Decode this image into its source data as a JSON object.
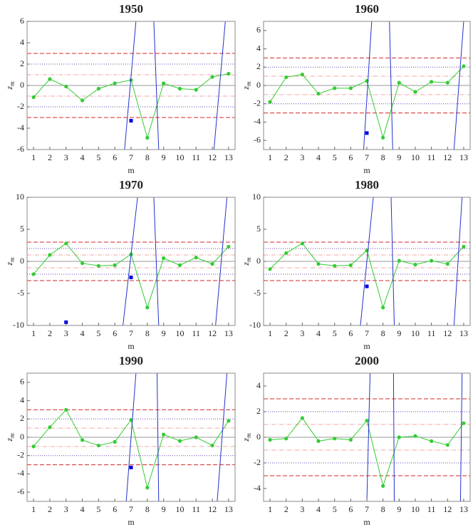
{
  "chart_data": [
    {
      "type": "line",
      "title": "1950",
      "x_label": "m",
      "y_label": "z",
      "y_label_subscript": "m",
      "xlim": [
        0.6,
        13.4
      ],
      "xticks": [
        1,
        2,
        3,
        4,
        5,
        6,
        7,
        8,
        9,
        10,
        11,
        12,
        13
      ],
      "ylim": [
        -6,
        6
      ],
      "yticks": [
        -6,
        -4,
        -2,
        0,
        2,
        4,
        6
      ],
      "reference_lines": [
        {
          "value": 3,
          "color": "#d62728",
          "dash": "6,3"
        },
        {
          "value": -3,
          "color": "#d62728",
          "dash": "6,3"
        },
        {
          "value": 2,
          "color": "#6a3fb0",
          "dash": "1,2"
        },
        {
          "value": -2,
          "color": "#6a3fb0",
          "dash": "1,2"
        },
        {
          "value": 1,
          "color": "#f4a6a6",
          "dash": "6,2,1,2"
        },
        {
          "value": -1,
          "color": "#f4a6a6",
          "dash": "6,2,1,2"
        },
        {
          "value": 0,
          "color": "#999999",
          "dash": "none"
        }
      ],
      "series": [
        {
          "color": "#33cc33",
          "marker": "circle",
          "x": [
            1,
            2,
            3,
            4,
            5,
            6,
            7,
            8,
            9,
            10,
            11,
            12,
            13
          ],
          "values": [
            -1.1,
            0.6,
            -0.1,
            -1.4,
            -0.3,
            0.2,
            0.5,
            -4.9,
            0.2,
            -0.3,
            -0.4,
            0.8,
            1.1
          ]
        },
        {
          "color": "#0000dd",
          "marker": "square",
          "x": [
            7
          ],
          "values": [
            -3.3
          ]
        },
        {
          "color": "#2233cc",
          "marker": "none",
          "x": [
            6.6,
            7.3,
            null,
            8.4,
            8.7,
            null,
            12.1,
            12.8
          ],
          "values": [
            -6,
            6,
            null,
            6,
            -6,
            null,
            -6,
            6
          ]
        }
      ]
    },
    {
      "type": "line",
      "title": "1960",
      "x_label": "m",
      "y_label": "z",
      "y_label_subscript": "m",
      "xlim": [
        0.6,
        13.4
      ],
      "xticks": [
        1,
        2,
        3,
        4,
        5,
        6,
        7,
        8,
        9,
        10,
        11,
        12,
        13
      ],
      "ylim": [
        -7,
        7
      ],
      "yticks": [
        -6,
        -4,
        -2,
        0,
        2,
        4,
        6
      ],
      "reference_lines": [
        {
          "value": 3,
          "color": "#d62728",
          "dash": "6,3"
        },
        {
          "value": -3,
          "color": "#d62728",
          "dash": "6,3"
        },
        {
          "value": 2,
          "color": "#6a3fb0",
          "dash": "1,2"
        },
        {
          "value": -2,
          "color": "#6a3fb0",
          "dash": "1,2"
        },
        {
          "value": 1,
          "color": "#f4a6a6",
          "dash": "6,2,1,2"
        },
        {
          "value": -1,
          "color": "#f4a6a6",
          "dash": "6,2,1,2"
        },
        {
          "value": 0,
          "color": "#999999",
          "dash": "none"
        }
      ],
      "series": [
        {
          "color": "#33cc33",
          "marker": "circle",
          "x": [
            1,
            2,
            3,
            4,
            5,
            6,
            7,
            8,
            9,
            10,
            11,
            12,
            13
          ],
          "values": [
            -1.8,
            0.9,
            1.2,
            -0.9,
            -0.3,
            -0.3,
            0.5,
            -5.7,
            0.3,
            -0.7,
            0.4,
            0.3,
            2.1
          ]
        },
        {
          "color": "#0000dd",
          "marker": "square",
          "x": [
            7
          ],
          "values": [
            -5.2
          ]
        },
        {
          "color": "#2233cc",
          "marker": "none",
          "x": [
            6.8,
            7.3,
            null,
            8.4,
            8.6,
            null,
            12.4,
            13.0
          ],
          "values": [
            -7,
            7,
            null,
            7,
            -7,
            null,
            -7,
            7
          ]
        }
      ]
    },
    {
      "type": "line",
      "title": "1970",
      "x_label": "m",
      "y_label": "z",
      "y_label_subscript": "m",
      "xlim": [
        0.6,
        13.4
      ],
      "xticks": [
        1,
        2,
        3,
        4,
        5,
        6,
        7,
        8,
        9,
        10,
        11,
        12,
        13
      ],
      "ylim": [
        -10,
        10
      ],
      "yticks": [
        -10,
        -5,
        0,
        5,
        10
      ],
      "reference_lines": [
        {
          "value": 3,
          "color": "#d62728",
          "dash": "6,3"
        },
        {
          "value": -3,
          "color": "#d62728",
          "dash": "6,3"
        },
        {
          "value": 2,
          "color": "#6a3fb0",
          "dash": "1,2"
        },
        {
          "value": -2,
          "color": "#6a3fb0",
          "dash": "1,2"
        },
        {
          "value": 1,
          "color": "#f4a6a6",
          "dash": "6,2,1,2"
        },
        {
          "value": -1,
          "color": "#f4a6a6",
          "dash": "6,2,1,2"
        },
        {
          "value": 0,
          "color": "#999999",
          "dash": "none"
        }
      ],
      "series": [
        {
          "color": "#33cc33",
          "marker": "circle",
          "x": [
            1,
            2,
            3,
            4,
            5,
            6,
            7,
            8,
            9,
            10,
            11,
            12,
            13
          ],
          "values": [
            -2,
            1,
            2.8,
            -0.3,
            -0.7,
            -0.6,
            1.1,
            -7.2,
            0.5,
            -0.6,
            0.6,
            -0.4,
            2.3
          ]
        },
        {
          "color": "#0000dd",
          "marker": "square",
          "x": [
            7,
            3
          ],
          "values": [
            -2.5,
            -9.5
          ]
        },
        {
          "color": "#2233cc",
          "marker": "none",
          "x": [
            6.5,
            7.4,
            null,
            8.4,
            8.7,
            null,
            12.2,
            12.9
          ],
          "values": [
            -10,
            10,
            null,
            10,
            -10,
            null,
            -10,
            10
          ]
        }
      ]
    },
    {
      "type": "line",
      "title": "1980",
      "x_label": "m",
      "y_label": "z",
      "y_label_subscript": "m",
      "xlim": [
        0.6,
        13.4
      ],
      "xticks": [
        1,
        2,
        3,
        4,
        5,
        6,
        7,
        8,
        9,
        10,
        11,
        12,
        13
      ],
      "ylim": [
        -10,
        10
      ],
      "yticks": [
        -10,
        -5,
        0,
        5,
        10
      ],
      "reference_lines": [
        {
          "value": 3,
          "color": "#d62728",
          "dash": "6,3"
        },
        {
          "value": -3,
          "color": "#d62728",
          "dash": "6,3"
        },
        {
          "value": 2,
          "color": "#6a3fb0",
          "dash": "1,2"
        },
        {
          "value": -2,
          "color": "#6a3fb0",
          "dash": "1,2"
        },
        {
          "value": 1,
          "color": "#f4a6a6",
          "dash": "6,2,1,2"
        },
        {
          "value": -1,
          "color": "#f4a6a6",
          "dash": "6,2,1,2"
        },
        {
          "value": 0,
          "color": "#999999",
          "dash": "none"
        }
      ],
      "series": [
        {
          "color": "#33cc33",
          "marker": "circle",
          "x": [
            1,
            2,
            3,
            4,
            5,
            6,
            7,
            8,
            9,
            10,
            11,
            12,
            13
          ],
          "values": [
            -1.2,
            1.3,
            2.8,
            -0.4,
            -0.7,
            -0.6,
            1.7,
            -7.2,
            0.1,
            -0.5,
            0.1,
            -0.4,
            2.3
          ]
        },
        {
          "color": "#0000dd",
          "marker": "square",
          "x": [
            7
          ],
          "values": [
            -3.9
          ]
        },
        {
          "color": "#2233cc",
          "marker": "none",
          "x": [
            6.6,
            7.4,
            null,
            8.5,
            8.7,
            null,
            12.4,
            12.9
          ],
          "values": [
            -10,
            10,
            null,
            10,
            -10,
            null,
            -10,
            10
          ]
        }
      ]
    },
    {
      "type": "line",
      "title": "1990",
      "x_label": "m",
      "y_label": "z",
      "y_label_subscript": "m",
      "xlim": [
        0.6,
        13.4
      ],
      "xticks": [
        1,
        2,
        3,
        4,
        5,
        6,
        7,
        8,
        9,
        10,
        11,
        12,
        13
      ],
      "ylim": [
        -7,
        7
      ],
      "yticks": [
        -6,
        -4,
        -2,
        0,
        2,
        4,
        6
      ],
      "reference_lines": [
        {
          "value": 3,
          "color": "#d62728",
          "dash": "6,3"
        },
        {
          "value": -3,
          "color": "#d62728",
          "dash": "6,3"
        },
        {
          "value": 2,
          "color": "#6a3fb0",
          "dash": "1,2"
        },
        {
          "value": -2,
          "color": "#6a3fb0",
          "dash": "1,2"
        },
        {
          "value": 1,
          "color": "#f4a6a6",
          "dash": "6,2,1,2"
        },
        {
          "value": -1,
          "color": "#f4a6a6",
          "dash": "6,2,1,2"
        },
        {
          "value": 0,
          "color": "#999999",
          "dash": "none"
        }
      ],
      "series": [
        {
          "color": "#33cc33",
          "marker": "circle",
          "x": [
            1,
            2,
            3,
            4,
            5,
            6,
            7,
            8,
            9,
            10,
            11,
            12,
            13
          ],
          "values": [
            -1,
            1.1,
            3,
            -0.3,
            -0.9,
            -0.5,
            1.9,
            -5.5,
            0.3,
            -0.4,
            0,
            -0.9,
            1.8
          ]
        },
        {
          "color": "#0000dd",
          "marker": "square",
          "x": [
            7
          ],
          "values": [
            -3.3
          ]
        },
        {
          "color": "#2233cc",
          "marker": "none",
          "x": [
            6.7,
            7.3,
            null,
            8.6,
            8.7,
            null,
            12.3,
            12.9
          ],
          "values": [
            -7,
            7,
            null,
            7,
            -7,
            null,
            -7,
            7
          ]
        }
      ]
    },
    {
      "type": "line",
      "title": "2000",
      "x_label": "m",
      "y_label": "z",
      "y_label_subscript": "m",
      "xlim": [
        0.6,
        13.4
      ],
      "xticks": [
        1,
        2,
        3,
        4,
        5,
        6,
        7,
        8,
        9,
        10,
        11,
        12,
        13
      ],
      "ylim": [
        -5,
        5
      ],
      "yticks": [
        -4,
        -2,
        0,
        2,
        4
      ],
      "reference_lines": [
        {
          "value": 3,
          "color": "#d62728",
          "dash": "6,3"
        },
        {
          "value": -3,
          "color": "#d62728",
          "dash": "6,3"
        },
        {
          "value": 2,
          "color": "#6a3fb0",
          "dash": "1,2"
        },
        {
          "value": -2,
          "color": "#6a3fb0",
          "dash": "1,2"
        },
        {
          "value": 1,
          "color": "#f4a6a6",
          "dash": "6,2,1,2"
        },
        {
          "value": -1,
          "color": "#f4a6a6",
          "dash": "6,2,1,2"
        },
        {
          "value": 0,
          "color": "#999999",
          "dash": "none"
        }
      ],
      "series": [
        {
          "color": "#33cc33",
          "marker": "circle",
          "x": [
            1,
            2,
            3,
            4,
            5,
            6,
            7,
            8,
            9,
            10,
            11,
            12,
            13
          ],
          "values": [
            -0.2,
            -0.1,
            1.5,
            -0.3,
            -0.1,
            -0.2,
            1.3,
            -3.8,
            0,
            0.1,
            -0.3,
            -0.6,
            1.1
          ]
        },
        {
          "color": "#2233cc",
          "marker": "none",
          "x": [
            7.0,
            7.2,
            null,
            8.65,
            8.7,
            null,
            12.8,
            12.9
          ],
          "values": [
            -5,
            5,
            null,
            5,
            -5,
            null,
            -5,
            5
          ]
        }
      ]
    }
  ]
}
